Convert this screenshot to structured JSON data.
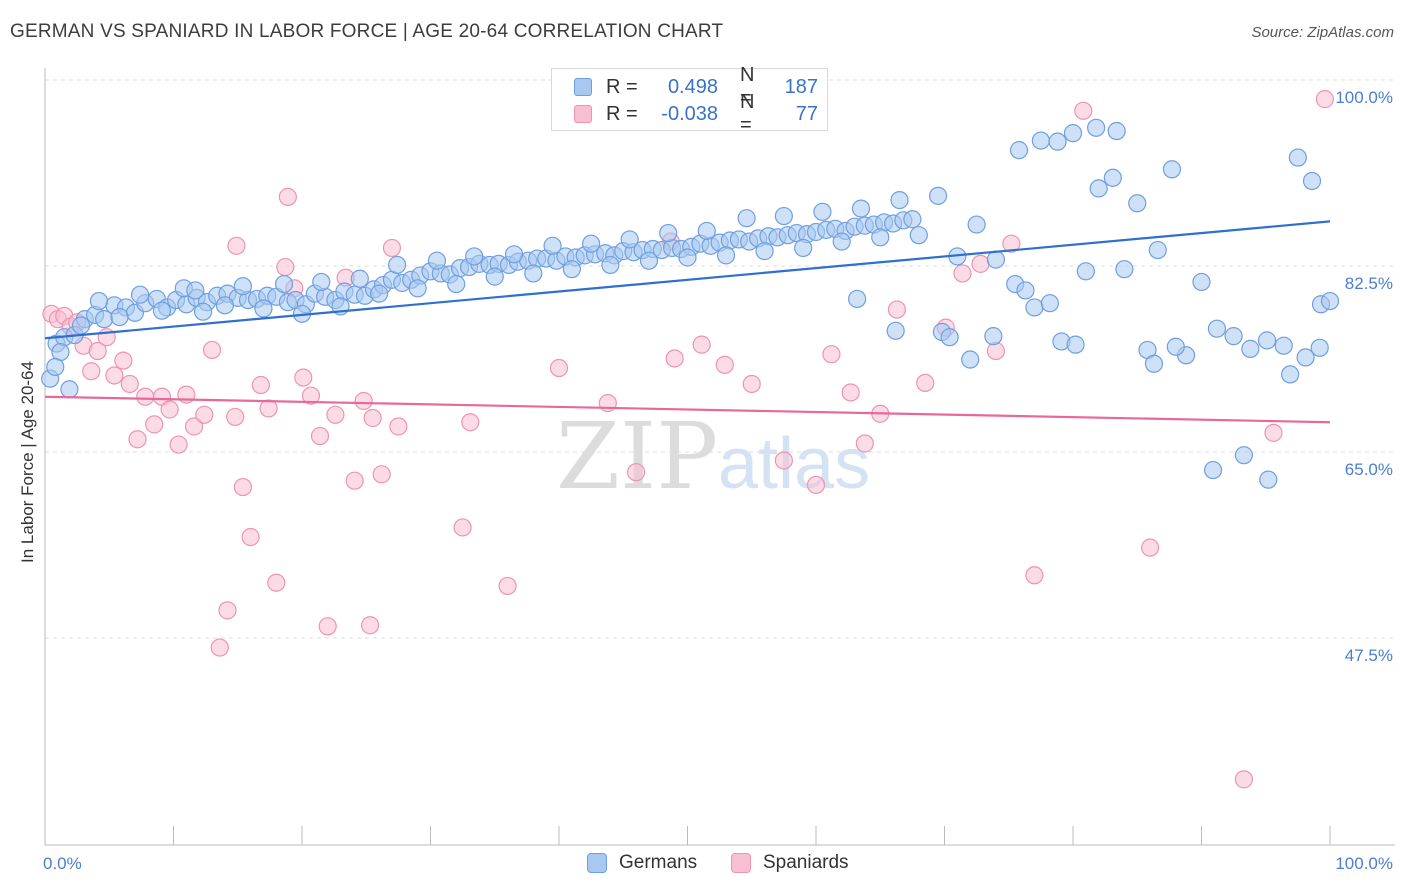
{
  "header": {
    "title": "GERMAN VS SPANIARD IN LABOR FORCE | AGE 20-64 CORRELATION CHART",
    "source": "Source: ZipAtlas.com"
  },
  "legend": {
    "rows": [
      {
        "r_label": "R =",
        "r_value": "0.498",
        "n_label": "N =",
        "n_value": "187"
      },
      {
        "r_label": "R =",
        "r_value": "-0.038",
        "n_label": "N =",
        "n_value": "77"
      }
    ]
  },
  "bottom_legend": {
    "germans": "Germans",
    "spaniards": "Spaniards"
  },
  "watermark": {
    "zip": "ZIP",
    "atlas": "atlas"
  },
  "colors": {
    "german_fill": "#a8c8f0",
    "german_stroke": "#6f9fe0",
    "german_line": "#2f6fd0",
    "spaniard_fill": "#f8bfd2",
    "spaniard_stroke": "#ee93b3",
    "spaniard_line": "#e8689a",
    "value_text": "#3a72c8",
    "grid": "#dddddd"
  },
  "chart_data": {
    "type": "scatter",
    "title": "GERMAN VS SPANIARD IN LABOR FORCE | AGE 20-64 CORRELATION CHART",
    "xlabel": "",
    "ylabel": "In Labor Force | Age 20-64",
    "xlim": [
      0,
      100
    ],
    "ylim": [
      30,
      102
    ],
    "x_tick_labels": [
      "0.0%",
      "100.0%"
    ],
    "y_ticks": [
      {
        "value": 100.0,
        "label": "100.0%"
      },
      {
        "value": 82.5,
        "label": "82.5%"
      },
      {
        "value": 65.0,
        "label": "65.0%"
      },
      {
        "value": 47.5,
        "label": "47.5%"
      }
    ],
    "series": [
      {
        "name": "Germans",
        "r": 0.498,
        "n": 187,
        "trend": {
          "x": [
            0,
            100
          ],
          "y": [
            77.3,
            88.3
          ]
        },
        "points": [
          [
            0.4,
            73.5
          ],
          [
            0.9,
            76.8
          ],
          [
            1.5,
            77.4
          ],
          [
            2.3,
            77.6
          ],
          [
            3.1,
            79.1
          ],
          [
            3.9,
            79.5
          ],
          [
            4.6,
            79.1
          ],
          [
            5.4,
            80.4
          ],
          [
            6.3,
            80.2
          ],
          [
            7.0,
            79.7
          ],
          [
            7.8,
            80.6
          ],
          [
            8.7,
            81.0
          ],
          [
            9.5,
            80.2
          ],
          [
            10.2,
            80.9
          ],
          [
            11.0,
            80.5
          ],
          [
            11.8,
            81.1
          ],
          [
            12.6,
            80.7
          ],
          [
            13.4,
            81.3
          ],
          [
            14.2,
            81.5
          ],
          [
            15.0,
            81.1
          ],
          [
            15.8,
            80.9
          ],
          [
            16.5,
            81.0
          ],
          [
            17.3,
            81.3
          ],
          [
            18.0,
            81.2
          ],
          [
            18.9,
            80.7
          ],
          [
            19.5,
            80.9
          ],
          [
            20.3,
            80.5
          ],
          [
            21.0,
            81.5
          ],
          [
            21.8,
            81.2
          ],
          [
            22.6,
            80.9
          ],
          [
            23.3,
            81.7
          ],
          [
            24.1,
            81.4
          ],
          [
            24.9,
            81.3
          ],
          [
            25.6,
            81.9
          ],
          [
            26.3,
            82.3
          ],
          [
            27.0,
            82.8
          ],
          [
            27.8,
            82.5
          ],
          [
            28.5,
            82.8
          ],
          [
            29.2,
            83.2
          ],
          [
            30.0,
            83.6
          ],
          [
            30.8,
            83.4
          ],
          [
            31.5,
            83.3
          ],
          [
            32.3,
            83.9
          ],
          [
            33.0,
            84.0
          ],
          [
            33.8,
            84.3
          ],
          [
            34.6,
            84.2
          ],
          [
            35.3,
            84.3
          ],
          [
            36.1,
            84.2
          ],
          [
            36.8,
            84.5
          ],
          [
            37.6,
            84.6
          ],
          [
            38.3,
            84.8
          ],
          [
            39.0,
            84.8
          ],
          [
            39.8,
            84.6
          ],
          [
            40.5,
            85.0
          ],
          [
            41.3,
            84.9
          ],
          [
            42.0,
            85.1
          ],
          [
            42.8,
            85.2
          ],
          [
            43.6,
            85.3
          ],
          [
            44.3,
            85.1
          ],
          [
            45.0,
            85.5
          ],
          [
            45.8,
            85.4
          ],
          [
            46.5,
            85.6
          ],
          [
            47.3,
            85.7
          ],
          [
            48.0,
            85.6
          ],
          [
            48.8,
            85.8
          ],
          [
            49.5,
            85.7
          ],
          [
            50.3,
            85.9
          ],
          [
            51.0,
            86.2
          ],
          [
            51.8,
            86.0
          ],
          [
            52.5,
            86.3
          ],
          [
            53.3,
            86.5
          ],
          [
            54.0,
            86.6
          ],
          [
            54.8,
            86.4
          ],
          [
            55.5,
            86.7
          ],
          [
            56.3,
            86.9
          ],
          [
            57.0,
            86.8
          ],
          [
            57.8,
            87.0
          ],
          [
            58.5,
            87.2
          ],
          [
            59.3,
            87.1
          ],
          [
            60.0,
            87.3
          ],
          [
            60.8,
            87.5
          ],
          [
            61.5,
            87.6
          ],
          [
            62.3,
            87.4
          ],
          [
            63.0,
            87.8
          ],
          [
            63.8,
            87.9
          ],
          [
            64.5,
            88.0
          ],
          [
            65.3,
            88.2
          ],
          [
            66.0,
            88.1
          ],
          [
            66.8,
            88.4
          ],
          [
            67.5,
            88.5
          ],
          [
            1.2,
            76.0
          ],
          [
            2.8,
            78.5
          ],
          [
            4.2,
            80.8
          ],
          [
            5.8,
            79.3
          ],
          [
            7.4,
            81.4
          ],
          [
            9.1,
            79.9
          ],
          [
            10.8,
            82.0
          ],
          [
            12.3,
            79.8
          ],
          [
            14.0,
            80.4
          ],
          [
            15.4,
            82.2
          ],
          [
            17.0,
            80.1
          ],
          [
            18.6,
            82.4
          ],
          [
            20.0,
            79.6
          ],
          [
            21.5,
            82.6
          ],
          [
            23.0,
            80.3
          ],
          [
            24.5,
            82.9
          ],
          [
            26.0,
            81.5
          ],
          [
            27.4,
            84.2
          ],
          [
            29.0,
            82.0
          ],
          [
            30.5,
            84.6
          ],
          [
            32.0,
            82.4
          ],
          [
            33.4,
            85.0
          ],
          [
            35.0,
            83.1
          ],
          [
            36.5,
            85.2
          ],
          [
            38.0,
            83.4
          ],
          [
            39.5,
            86.0
          ],
          [
            41.0,
            83.8
          ],
          [
            42.5,
            86.2
          ],
          [
            44.0,
            84.2
          ],
          [
            45.5,
            86.6
          ],
          [
            47.0,
            84.6
          ],
          [
            48.5,
            87.2
          ],
          [
            50.0,
            84.9
          ],
          [
            51.5,
            87.4
          ],
          [
            53.0,
            85.1
          ],
          [
            54.6,
            88.6
          ],
          [
            56.0,
            85.5
          ],
          [
            57.5,
            88.8
          ],
          [
            59.0,
            85.8
          ],
          [
            60.5,
            89.2
          ],
          [
            62.0,
            86.4
          ],
          [
            63.5,
            89.5
          ],
          [
            65.0,
            86.8
          ],
          [
            66.5,
            90.3
          ],
          [
            68.0,
            87.0
          ],
          [
            69.5,
            90.7
          ],
          [
            71.0,
            85.0
          ],
          [
            72.5,
            88.0
          ],
          [
            74.0,
            84.7
          ],
          [
            75.5,
            82.4
          ],
          [
            76.3,
            81.8
          ],
          [
            77.0,
            80.2
          ],
          [
            78.2,
            80.6
          ],
          [
            79.1,
            77.0
          ],
          [
            80.2,
            76.7
          ],
          [
            81.0,
            83.6
          ],
          [
            82.0,
            91.4
          ],
          [
            83.1,
            92.4
          ],
          [
            84.0,
            83.8
          ],
          [
            85.0,
            90.0
          ],
          [
            85.8,
            76.2
          ],
          [
            86.6,
            85.6
          ],
          [
            87.7,
            93.2
          ],
          [
            88.8,
            75.7
          ],
          [
            90.0,
            82.6
          ],
          [
            91.2,
            78.2
          ],
          [
            92.5,
            77.5
          ],
          [
            93.8,
            76.3
          ],
          [
            95.1,
            77.1
          ],
          [
            96.4,
            76.6
          ],
          [
            97.5,
            94.3
          ],
          [
            98.6,
            92.1
          ],
          [
            99.3,
            80.5
          ],
          [
            63.2,
            81.0
          ],
          [
            66.2,
            78.0
          ],
          [
            69.8,
            77.9
          ],
          [
            70.4,
            77.4
          ],
          [
            72.0,
            75.3
          ],
          [
            73.8,
            77.5
          ],
          [
            75.8,
            95.0
          ],
          [
            77.5,
            95.9
          ],
          [
            78.8,
            95.8
          ],
          [
            80.0,
            96.6
          ],
          [
            81.8,
            97.1
          ],
          [
            83.4,
            96.8
          ],
          [
            86.3,
            74.9
          ],
          [
            88.0,
            76.5
          ],
          [
            90.9,
            64.9
          ],
          [
            93.3,
            66.3
          ],
          [
            95.2,
            64.0
          ],
          [
            96.9,
            73.9
          ],
          [
            98.1,
            75.5
          ],
          [
            99.2,
            76.4
          ],
          [
            100.0,
            80.8
          ],
          [
            11.7,
            81.8
          ],
          [
            0.8,
            74.6
          ],
          [
            1.9,
            72.5
          ]
        ]
      },
      {
        "name": "Spaniards",
        "r": -0.038,
        "n": 77,
        "trend": {
          "x": [
            0,
            100
          ],
          "y": [
            71.8,
            69.4
          ]
        },
        "points": [
          [
            0.5,
            79.6
          ],
          [
            1.0,
            79.1
          ],
          [
            1.5,
            79.4
          ],
          [
            2.0,
            78.4
          ],
          [
            2.5,
            78.8
          ],
          [
            3.0,
            76.6
          ],
          [
            3.6,
            74.2
          ],
          [
            4.1,
            76.1
          ],
          [
            4.8,
            77.4
          ],
          [
            5.4,
            73.8
          ],
          [
            6.1,
            75.2
          ],
          [
            6.6,
            73.0
          ],
          [
            7.2,
            67.8
          ],
          [
            7.8,
            71.8
          ],
          [
            8.5,
            69.2
          ],
          [
            9.1,
            71.8
          ],
          [
            9.7,
            70.6
          ],
          [
            10.4,
            67.3
          ],
          [
            11.0,
            72.0
          ],
          [
            11.6,
            69.0
          ],
          [
            12.4,
            70.1
          ],
          [
            13.0,
            76.2
          ],
          [
            13.6,
            48.2
          ],
          [
            14.2,
            51.7
          ],
          [
            14.8,
            69.9
          ],
          [
            15.4,
            63.3
          ],
          [
            16.0,
            58.6
          ],
          [
            16.8,
            72.9
          ],
          [
            17.4,
            70.7
          ],
          [
            18.0,
            54.3
          ],
          [
            18.7,
            84.0
          ],
          [
            19.4,
            82.0
          ],
          [
            20.1,
            73.6
          ],
          [
            20.7,
            71.9
          ],
          [
            21.4,
            68.1
          ],
          [
            22.0,
            50.2
          ],
          [
            22.6,
            70.1
          ],
          [
            23.4,
            83.0
          ],
          [
            24.1,
            63.9
          ],
          [
            24.8,
            71.4
          ],
          [
            25.5,
            69.8
          ],
          [
            26.2,
            64.5
          ],
          [
            27.0,
            85.8
          ],
          [
            27.5,
            69.0
          ],
          [
            25.3,
            50.3
          ],
          [
            14.9,
            86.0
          ],
          [
            18.9,
            90.6
          ],
          [
            32.5,
            59.5
          ],
          [
            33.1,
            69.4
          ],
          [
            36.0,
            54.0
          ],
          [
            40.0,
            74.5
          ],
          [
            43.8,
            71.2
          ],
          [
            46.0,
            64.7
          ],
          [
            49.0,
            75.4
          ],
          [
            51.1,
            76.7
          ],
          [
            52.9,
            74.8
          ],
          [
            55.0,
            73.0
          ],
          [
            57.5,
            65.8
          ],
          [
            60.0,
            63.5
          ],
          [
            61.2,
            75.8
          ],
          [
            62.7,
            72.2
          ],
          [
            63.8,
            67.4
          ],
          [
            65.0,
            70.2
          ],
          [
            66.3,
            80.0
          ],
          [
            68.5,
            73.1
          ],
          [
            70.1,
            78.3
          ],
          [
            71.4,
            83.4
          ],
          [
            72.8,
            84.3
          ],
          [
            74.0,
            76.1
          ],
          [
            75.2,
            86.2
          ],
          [
            77.0,
            55.0
          ],
          [
            80.8,
            98.7
          ],
          [
            86.0,
            57.6
          ],
          [
            93.3,
            35.8
          ],
          [
            95.6,
            68.4
          ],
          [
            99.6,
            99.8
          ],
          [
            48.7,
            86.4
          ]
        ]
      }
    ]
  }
}
